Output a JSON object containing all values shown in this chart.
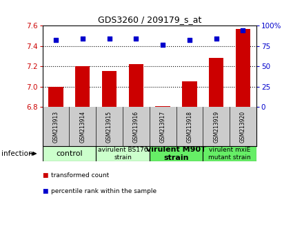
{
  "title": "GDS3260 / 209179_s_at",
  "samples": [
    "GSM213913",
    "GSM213914",
    "GSM213915",
    "GSM213916",
    "GSM213917",
    "GSM213918",
    "GSM213919",
    "GSM213920"
  ],
  "bar_values": [
    7.0,
    7.2,
    7.15,
    7.22,
    6.81,
    7.05,
    7.28,
    7.57
  ],
  "percentile_values": [
    82,
    84,
    84,
    84,
    76,
    82,
    84,
    94
  ],
  "ylim_left": [
    6.8,
    7.6
  ],
  "ylim_right": [
    0,
    100
  ],
  "yticks_left": [
    6.8,
    7.0,
    7.2,
    7.4,
    7.6
  ],
  "yticks_right": [
    0,
    25,
    50,
    75,
    100
  ],
  "ytick_labels_right": [
    "0",
    "25",
    "50",
    "75",
    "100%"
  ],
  "bar_color": "#cc0000",
  "scatter_color": "#0000cc",
  "bar_bottom": 6.8,
  "groups": [
    {
      "label": "control",
      "start": 0,
      "end": 2,
      "color": "#ccffcc",
      "fontsize": 8,
      "bold": false
    },
    {
      "label": "avirulent BS176\nstrain",
      "start": 2,
      "end": 4,
      "color": "#ccffcc",
      "fontsize": 6.5,
      "bold": false
    },
    {
      "label": "virulent M90T\nstrain",
      "start": 4,
      "end": 6,
      "color": "#66ee66",
      "fontsize": 8,
      "bold": true
    },
    {
      "label": "virulent mxiE\nmutant strain",
      "start": 6,
      "end": 8,
      "color": "#66ee66",
      "fontsize": 6.5,
      "bold": false
    }
  ],
  "legend_items": [
    {
      "label": "transformed count",
      "color": "#cc0000"
    },
    {
      "label": "percentile rank within the sample",
      "color": "#0000cc"
    }
  ],
  "infection_label": "infection",
  "dotted_values": [
    7.0,
    7.2,
    7.4
  ],
  "sample_bg": "#cccccc",
  "background_color": "#ffffff"
}
